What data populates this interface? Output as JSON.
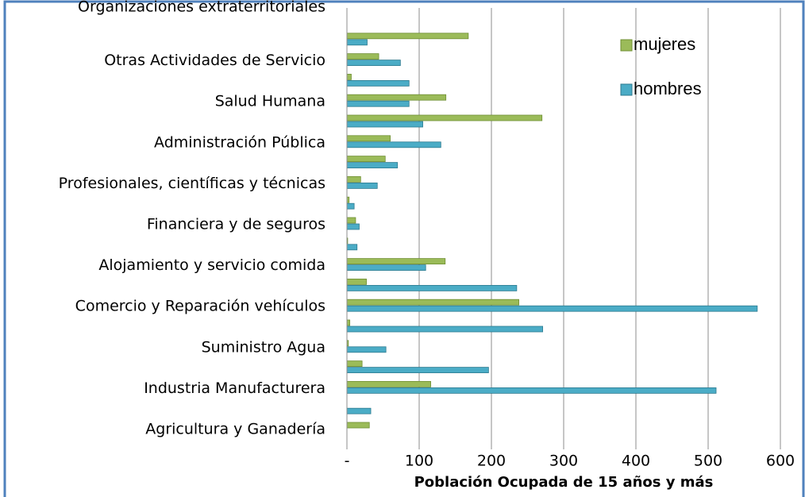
{
  "chart_data": {
    "type": "bar",
    "orientation": "horizontal",
    "x_label": "Población Ocupada de 15 años y más",
    "categories": [
      "Agricultura y Ganadería",
      null,
      "Industria Manufacturera",
      null,
      "Suministro Agua",
      null,
      "Comercio y Reparación vehículos",
      null,
      "Alojamiento y servicio comida",
      null,
      "Financiera y de seguros",
      null,
      "Profesionales, científicas y técnicas",
      null,
      "Administración Pública",
      null,
      "Salud Humana",
      null,
      "Otras Actividades de Servicio",
      null,
      "Organizaciones extraterritoriales"
    ],
    "series": [
      {
        "name": "mujeres",
        "color": "#9bbb59",
        "values": [
          31,
          0,
          116,
          21,
          2,
          4,
          238,
          27,
          136,
          1,
          12,
          3,
          19,
          53,
          60,
          270,
          137,
          6,
          44,
          168,
          0
        ]
      },
      {
        "name": "hombres",
        "color": "#4bacc6",
        "values": [
          0,
          33,
          511,
          196,
          54,
          271,
          568,
          235,
          109,
          14,
          17,
          10,
          42,
          70,
          130,
          105,
          86,
          86,
          74,
          28,
          0
        ]
      }
    ],
    "xlim": [
      0,
      600
    ],
    "xticks": [
      {
        "value": 0,
        "label": "-"
      },
      100,
      200,
      300,
      400,
      500,
      600
    ],
    "grid": true,
    "legend": "top-right"
  }
}
